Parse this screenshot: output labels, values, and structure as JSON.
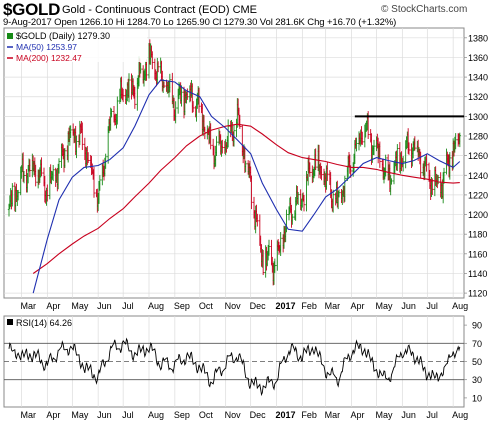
{
  "header": {
    "symbol": "$GOLD",
    "subtitle": "Gold - Continuous Contract (EOD)",
    "exchange": "CME",
    "watermark": "© StockCharts.com",
    "quote": "9-Aug-2017   Open 1266.10   Hi 1284.70   Lo 1265.90   Cl 1279.30   Vol 281.6K   Chg +16.70 (+1.32%)"
  },
  "colors": {
    "up": "#178a17",
    "down": "#c8001e",
    "ma50": "#1f2fb0",
    "ma200": "#c8001e",
    "resistance": "#000000",
    "rsi": "#000000",
    "grid": "#dcdcdc"
  },
  "legend": {
    "price": "$GOLD (Daily) 1279.30",
    "ma50": "MA(50) 1253.97",
    "ma200": "MA(200) 1232.47"
  },
  "rsi_legend": "RSI(14) 64.26",
  "chart_data": [
    {
      "type": "line",
      "title": "$GOLD (Daily) 1279.30",
      "x": [
        "2016-02-15",
        "2016-03-01",
        "2016-03-15",
        "2016-04-01",
        "2016-04-15",
        "2016-05-01",
        "2016-05-15",
        "2016-06-01",
        "2016-06-15",
        "2016-07-01",
        "2016-07-15",
        "2016-08-01",
        "2016-08-15",
        "2016-09-01",
        "2016-09-15",
        "2016-10-01",
        "2016-10-15",
        "2016-11-01",
        "2016-11-15",
        "2016-12-01",
        "2016-12-15",
        "2017-01-01",
        "2017-01-15",
        "2017-02-01",
        "2017-02-15",
        "2017-03-01",
        "2017-03-15",
        "2017-04-01",
        "2017-04-15",
        "2017-05-01",
        "2017-05-15",
        "2017-06-01",
        "2017-06-15",
        "2017-07-01",
        "2017-07-15",
        "2017-08-01",
        "2017-08-09"
      ],
      "series": [
        {
          "name": "$GOLD",
          "values": [
            1205,
            1240,
            1250,
            1225,
            1248,
            1285,
            1275,
            1215,
            1290,
            1325,
            1330,
            1360,
            1340,
            1312,
            1325,
            1310,
            1265,
            1270,
            1300,
            1230,
            1155,
            1150,
            1200,
            1220,
            1255,
            1235,
            1210,
            1255,
            1290,
            1265,
            1235,
            1262,
            1272,
            1240,
            1225,
            1265,
            1279.3
          ]
        },
        {
          "name": "MA(50)",
          "values": [
            null,
            null,
            1120,
            1175,
            1215,
            1238,
            1248,
            1250,
            1256,
            1268,
            1290,
            1322,
            1337,
            1335,
            1326,
            1320,
            1300,
            1288,
            1276,
            1262,
            1232,
            1205,
            1185,
            1183,
            1200,
            1218,
            1226,
            1240,
            1252,
            1258,
            1255,
            1252,
            1255,
            1262,
            1255,
            1248,
            1254
          ]
        },
        {
          "name": "MA(200)",
          "values": [
            null,
            null,
            1140,
            1150,
            1160,
            1170,
            1178,
            1186,
            1196,
            1206,
            1218,
            1232,
            1245,
            1258,
            1270,
            1280,
            1286,
            1290,
            1292,
            1290,
            1282,
            1271,
            1263,
            1258,
            1256,
            1254,
            1251,
            1248,
            1248,
            1246,
            1243,
            1240,
            1238,
            1236,
            1233,
            1232,
            1232.5
          ]
        }
      ],
      "resistance": 1300,
      "ylim": [
        1115,
        1390
      ],
      "yticks": [
        1120,
        1140,
        1160,
        1180,
        1200,
        1220,
        1240,
        1260,
        1280,
        1300,
        1320,
        1340,
        1360,
        1380
      ],
      "month_labels": [
        {
          "x": "2016-03-01",
          "label": "Mar"
        },
        {
          "x": "2016-04-01",
          "label": "Apr"
        },
        {
          "x": "2016-05-01",
          "label": "May"
        },
        {
          "x": "2016-06-01",
          "label": "Jun"
        },
        {
          "x": "2016-07-01",
          "label": "Jul"
        },
        {
          "x": "2016-08-01",
          "label": "Aug"
        },
        {
          "x": "2016-09-01",
          "label": "Sep"
        },
        {
          "x": "2016-10-01",
          "label": "Oct"
        },
        {
          "x": "2016-11-01",
          "label": "Nov"
        },
        {
          "x": "2016-12-01",
          "label": "Dec"
        },
        {
          "x": "2017-01-01",
          "label": "2017"
        },
        {
          "x": "2017-02-01",
          "label": "Feb"
        },
        {
          "x": "2017-03-01",
          "label": "Mar"
        },
        {
          "x": "2017-04-01",
          "label": "Apr"
        },
        {
          "x": "2017-05-01",
          "label": "May"
        },
        {
          "x": "2017-06-01",
          "label": "Jun"
        },
        {
          "x": "2017-07-01",
          "label": "Jul"
        },
        {
          "x": "2017-08-01",
          "label": "Aug"
        }
      ],
      "grid": true
    },
    {
      "type": "line",
      "title": "RSI(14) 64.26",
      "x": [
        "2016-02-15",
        "2016-03-01",
        "2016-03-15",
        "2016-04-01",
        "2016-04-15",
        "2016-05-01",
        "2016-05-15",
        "2016-06-01",
        "2016-06-15",
        "2016-07-01",
        "2016-07-15",
        "2016-08-01",
        "2016-08-15",
        "2016-09-01",
        "2016-09-15",
        "2016-10-01",
        "2016-10-15",
        "2016-11-01",
        "2016-11-15",
        "2016-12-01",
        "2016-12-15",
        "2017-01-01",
        "2017-01-15",
        "2017-02-01",
        "2017-02-15",
        "2017-03-01",
        "2017-03-15",
        "2017-04-01",
        "2017-04-15",
        "2017-05-01",
        "2017-05-15",
        "2017-06-01",
        "2017-06-15",
        "2017-07-01",
        "2017-07-15",
        "2017-08-01",
        "2017-08-09"
      ],
      "series": [
        {
          "name": "RSI(14)",
          "values": [
            64,
            56,
            58,
            46,
            62,
            66,
            44,
            33,
            62,
            70,
            58,
            66,
            48,
            46,
            56,
            44,
            28,
            48,
            58,
            26,
            22,
            30,
            64,
            56,
            66,
            40,
            30,
            62,
            66,
            40,
            30,
            62,
            58,
            36,
            32,
            60,
            64.26
          ]
        }
      ],
      "ylim": [
        0,
        100
      ],
      "yticks": [
        10,
        30,
        50,
        70,
        90
      ],
      "bands": [
        30,
        50,
        70
      ]
    }
  ]
}
